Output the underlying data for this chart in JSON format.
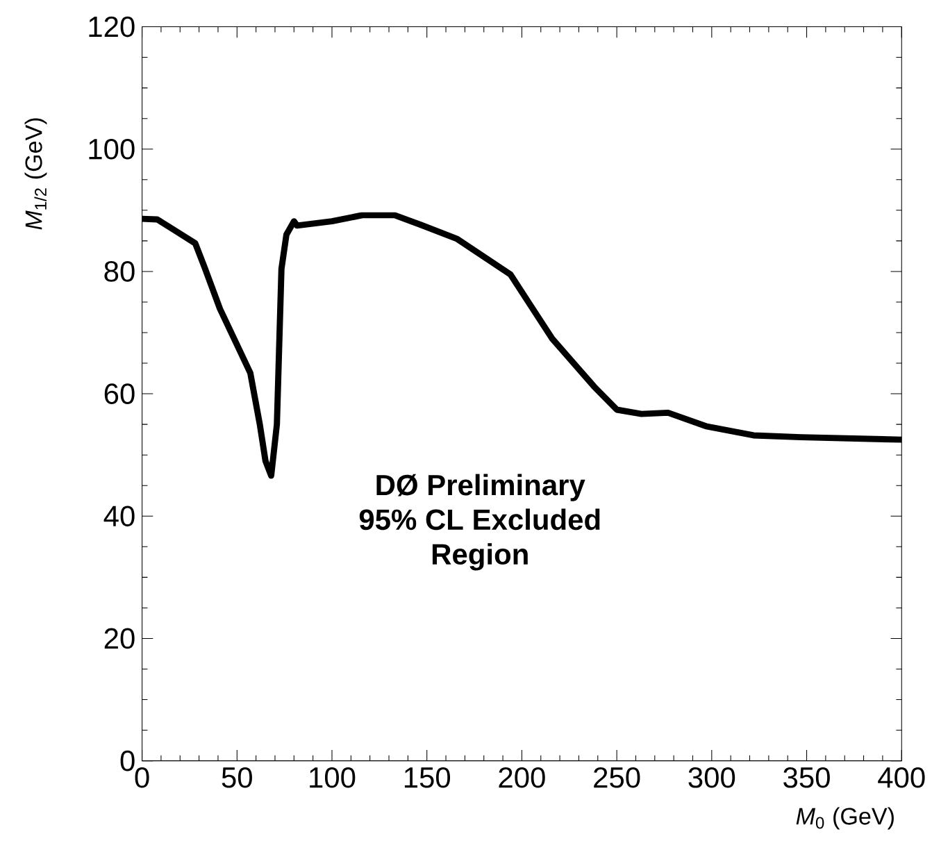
{
  "chart_data": {
    "type": "line",
    "xlabel": "*M*$_{0}$ (GeV)",
    "ylabel": "*M*$_{1/2}$ (GeV)",
    "xlim": [
      0,
      400
    ],
    "ylim": [
      0,
      120
    ],
    "xticks": [
      0,
      50,
      100,
      150,
      200,
      250,
      300,
      350,
      400
    ],
    "yticks": [
      0,
      20,
      40,
      60,
      80,
      100,
      120
    ],
    "annotations": [
      "DØ Preliminary",
      "95% CL Excluded",
      "Region"
    ],
    "series": [
      {
        "color": "#000000",
        "x": [
          0,
          8,
          28,
          33,
          41,
          50,
          57,
          62,
          65,
          68,
          71,
          73.4,
          76,
          80,
          81.6,
          100,
          116,
          133,
          147,
          166,
          194,
          216,
          238,
          250,
          263,
          277,
          297,
          322,
          347,
          400
        ],
        "values": [
          88.6,
          88.5,
          84.6,
          80.6,
          73.9,
          68,
          63.4,
          55,
          49,
          46.6,
          55,
          80.4,
          86,
          88.2,
          87.5,
          88.2,
          89.2,
          89.2,
          87.6,
          85.3,
          79.5,
          69,
          61.2,
          57.4,
          56.7,
          56.9,
          54.7,
          53.2,
          52.9,
          52.5
        ]
      }
    ]
  }
}
